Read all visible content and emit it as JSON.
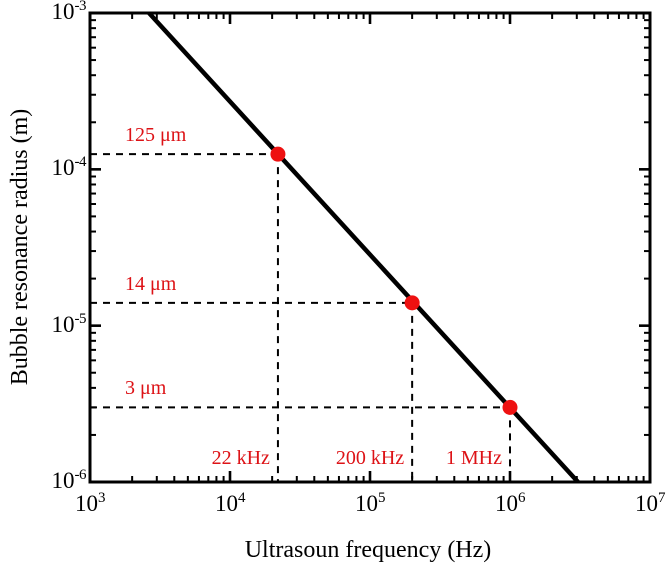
{
  "chart_data": {
    "type": "line",
    "title": "",
    "xlabel": "Ultrasoun frequency (Hz)",
    "ylabel": "Bubble resonance radius (m)",
    "x_scale": "log",
    "y_scale": "log",
    "xlim": [
      1000,
      10000000
    ],
    "ylim": [
      1e-06,
      0.001
    ],
    "x_tick_exponents": [
      3,
      4,
      5,
      6,
      7
    ],
    "y_tick_exponents": [
      -3,
      -4,
      -5,
      -6
    ],
    "grid": false,
    "legend": false,
    "frame_color": "#000000",
    "line": {
      "name": "bubble-resonance-curve",
      "color": "#000000",
      "width": 4.5,
      "endpoints_f_hz_radius_m": [
        [
          2640,
          0.001
        ],
        [
          3060000,
          1e-06
        ]
      ]
    },
    "points": [
      {
        "f_hz": 22000,
        "radius_m": 0.000125,
        "freq_label": "22 kHz",
        "radius_label": "125 μm"
      },
      {
        "f_hz": 200000,
        "radius_m": 1.4e-05,
        "freq_label": "200 kHz",
        "radius_label": "14 μm"
      },
      {
        "f_hz": 1000000,
        "radius_m": 3e-06,
        "freq_label": "1 MHz",
        "radius_label": "3 μm"
      }
    ],
    "marker": {
      "color": "#ee1111",
      "radius_px": 7.5
    },
    "annotation_color": "#dd1216",
    "guide_lines": {
      "style": "dashed",
      "color": "#000000",
      "width": 2
    }
  }
}
